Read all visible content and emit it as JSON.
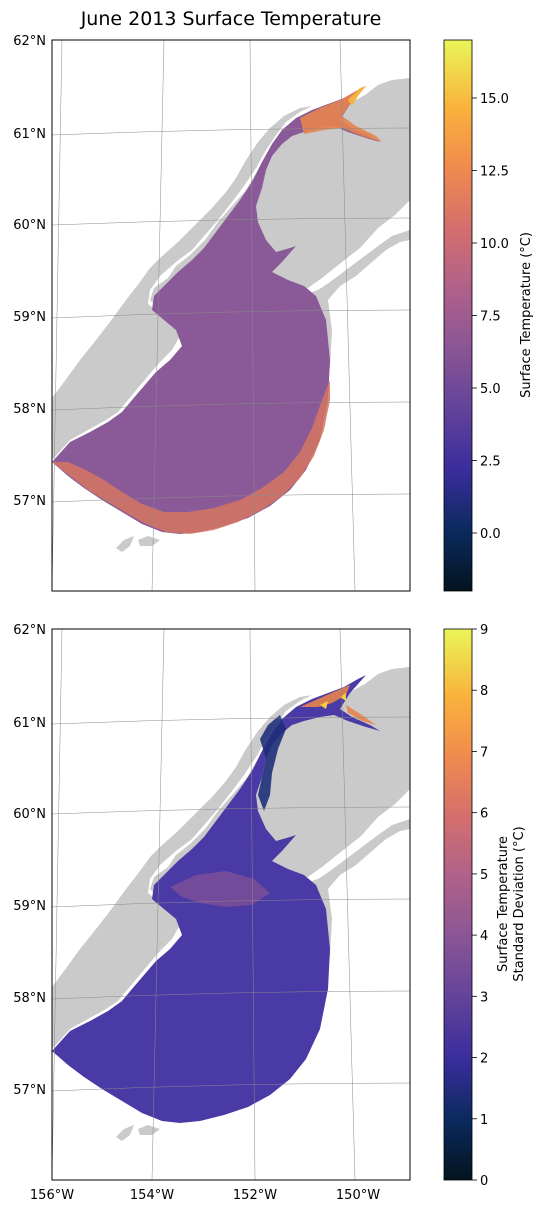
{
  "title": "June 2013 Surface Temperature",
  "colors": {
    "land": "#cacaca",
    "ocean_bg": "#ffffff",
    "grid": "#8a8a8a",
    "cmap": [
      "#03141f",
      "#0b2a5e",
      "#3a2d9c",
      "#62439a",
      "#8a5595",
      "#b0618a",
      "#d46f6d",
      "#f08b4e",
      "#f9b33c",
      "#e9f658"
    ]
  },
  "chart_data": [
    {
      "type": "heatmap",
      "title": "June 2013 Surface Temperature",
      "lat_ticks": [
        "62°N",
        "61°N",
        "60°N",
        "59°N",
        "58°N",
        "57°N"
      ],
      "lon_ticks": [],
      "colorbar": {
        "label": "Surface Temperature (°C)",
        "range": [
          -2,
          17
        ],
        "ticks": [
          0.0,
          2.5,
          5.0,
          7.5,
          10.0,
          12.5,
          15.0
        ],
        "tick_labels": [
          "0.0",
          "2.5",
          "5.0",
          "7.5",
          "10.0",
          "12.5",
          "15.0"
        ]
      },
      "typical_value": 6.5
    },
    {
      "type": "heatmap",
      "lat_ticks": [
        "62°N",
        "61°N",
        "60°N",
        "59°N",
        "58°N",
        "57°N"
      ],
      "lon_ticks": [
        "156°W",
        "154°W",
        "152°W",
        "150°W"
      ],
      "colorbar": {
        "label_lines": [
          "Surface Temperature",
          "Standard Deviation (°C)"
        ],
        "range": [
          0,
          9
        ],
        "ticks": [
          0,
          1,
          2,
          3,
          4,
          5,
          6,
          7,
          8,
          9
        ],
        "tick_labels": [
          "0",
          "1",
          "2",
          "3",
          "4",
          "5",
          "6",
          "7",
          "8",
          "9"
        ]
      },
      "typical_value": 2.2
    }
  ]
}
